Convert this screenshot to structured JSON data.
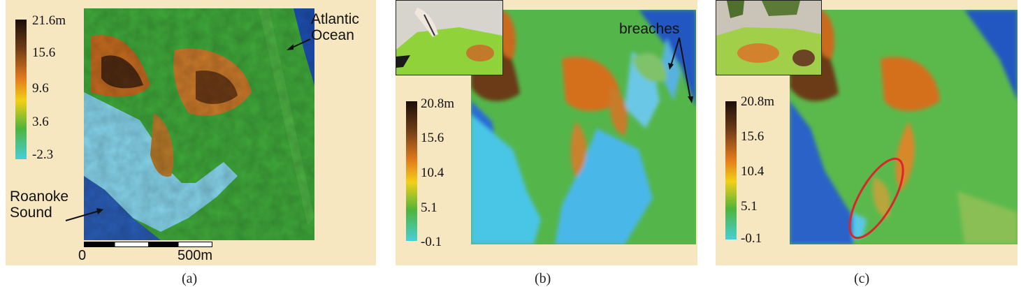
{
  "panels": [
    {
      "caption": "(a)",
      "legend": {
        "max": "21.6m",
        "ticks": [
          "15.6",
          "9.6",
          "3.6",
          "-2.3"
        ]
      },
      "labels": {
        "ocean": "Atlantic\nOcean",
        "sound": "Roanoke\nSound"
      },
      "scalebar": {
        "start": "0",
        "end": "500m"
      }
    },
    {
      "caption": "(b)",
      "legend": {
        "max": "20.8m",
        "ticks": [
          "15.6",
          "10.4",
          "5.1",
          "-0.1"
        ]
      },
      "labels": {
        "breaches": "breaches"
      }
    },
    {
      "caption": "(c)",
      "legend": {
        "max": "20.8m",
        "ticks": [
          "15.6",
          "10.4",
          "5.1",
          "-0.1"
        ]
      }
    }
  ],
  "colors": {
    "background": "#f7e7c1",
    "water": "#2a5fb8",
    "shallow": "#7fd0e6",
    "lowland": "#3fae3c",
    "mid": "#e07a1c",
    "high": "#5a2e14",
    "highlight_ellipse": "#d8262b"
  }
}
